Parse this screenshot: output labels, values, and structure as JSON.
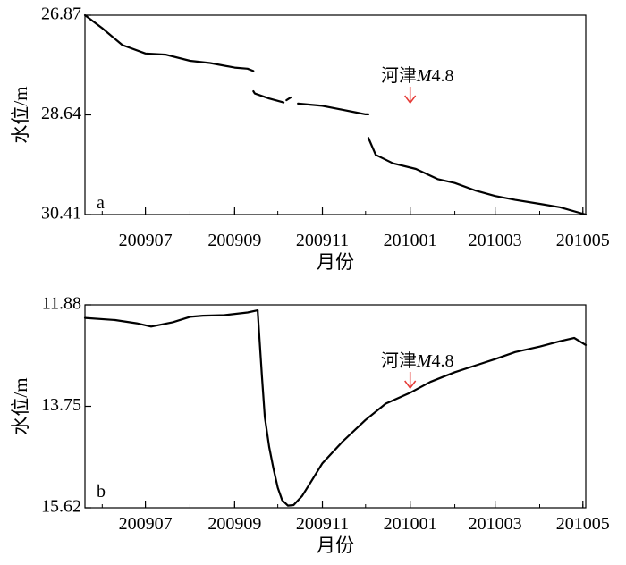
{
  "chart_data": [
    {
      "type": "line",
      "panel_label": "a",
      "xlabel": "月份",
      "ylabel": "水位/m",
      "y_inverted": true,
      "ylim": [
        26.87,
        30.41
      ],
      "xlim": [
        "2009-05-20",
        "2010-05-03"
      ],
      "y_ticks": [
        "26.87",
        "28.64",
        "30.41"
      ],
      "x_ticks": [
        "200907",
        "200909",
        "200911",
        "201001",
        "201003",
        "201005"
      ],
      "series_color": "#000000",
      "series": [
        {
          "segments": [
            {
              "x": [
                "2009-05-20",
                "2009-06-01",
                "2009-06-15",
                "2009-07-01",
                "2009-07-15",
                "2009-08-01",
                "2009-08-15",
                "2009-09-01",
                "2009-09-10",
                "2009-09-14"
              ],
              "y": [
                26.87,
                27.1,
                27.4,
                27.55,
                27.57,
                27.68,
                27.72,
                27.8,
                27.82,
                27.86
              ]
            },
            {
              "x": [
                "2009-09-14",
                "2009-09-15",
                "2009-09-25",
                "2009-10-05"
              ],
              "y": [
                28.22,
                28.26,
                28.35,
                28.42
              ]
            },
            {
              "x": [
                "2009-10-07",
                "2009-10-10"
              ],
              "y": [
                28.38,
                28.33
              ]
            },
            {
              "x": [
                "2009-10-15",
                "2009-11-01",
                "2009-11-15",
                "2009-11-25",
                "2009-12-01",
                "2009-12-03"
              ],
              "y": [
                28.44,
                28.48,
                28.55,
                28.6,
                28.63,
                28.63
              ]
            },
            {
              "x": [
                "2009-12-03",
                "2009-12-08",
                "2009-12-20",
                "2010-01-05",
                "2010-01-20",
                "2010-02-01",
                "2010-02-15",
                "2010-03-01",
                "2010-03-15",
                "2010-04-01",
                "2010-04-15",
                "2010-05-03"
              ],
              "y": [
                29.05,
                29.35,
                29.5,
                29.6,
                29.78,
                29.85,
                29.98,
                30.08,
                30.15,
                30.22,
                30.28,
                30.41
              ]
            }
          ]
        }
      ],
      "annotations": [
        {
          "text_prefix": "河津",
          "text_mag": "M",
          "text_value": "4.8",
          "arrow": "↓",
          "x": "2010-01-01",
          "arrow_color": "#e53935"
        }
      ]
    },
    {
      "type": "line",
      "panel_label": "b",
      "xlabel": "月份",
      "ylabel": "水位/m",
      "y_inverted": true,
      "ylim": [
        11.88,
        15.62
      ],
      "xlim": [
        "2009-05-20",
        "2010-05-03"
      ],
      "y_ticks": [
        "11.88",
        "13.75",
        "15.62"
      ],
      "x_ticks": [
        "200907",
        "200909",
        "200911",
        "201001",
        "201003",
        "201005"
      ],
      "series_color": "#000000",
      "series": [
        {
          "segments": [
            {
              "x": [
                "2009-05-20",
                "2009-06-10",
                "2009-06-25",
                "2009-07-05",
                "2009-07-20",
                "2009-08-01",
                "2009-08-10",
                "2009-08-25",
                "2009-09-10",
                "2009-09-17"
              ],
              "y": [
                12.12,
                12.16,
                12.22,
                12.28,
                12.2,
                12.1,
                12.08,
                12.07,
                12.02,
                11.98
              ]
            },
            {
              "x": [
                "2009-09-17",
                "2009-09-20",
                "2009-09-22",
                "2009-09-25",
                "2009-09-28",
                "2009-10-01",
                "2009-10-04",
                "2009-10-08",
                "2009-10-12",
                "2009-10-18",
                "2009-10-25",
                "2009-11-01",
                "2009-11-15",
                "2009-12-01",
                "2009-12-15",
                "2010-01-01",
                "2010-01-15",
                "2010-02-01",
                "2010-02-15",
                "2010-03-01",
                "2010-03-15",
                "2010-04-01",
                "2010-04-15",
                "2010-04-25",
                "2010-05-03"
              ],
              "y": [
                11.98,
                13.2,
                13.95,
                14.5,
                14.9,
                15.25,
                15.48,
                15.58,
                15.57,
                15.4,
                15.1,
                14.8,
                14.4,
                14.0,
                13.7,
                13.5,
                13.3,
                13.12,
                13.0,
                12.88,
                12.75,
                12.65,
                12.55,
                12.49,
                12.62
              ]
            }
          ]
        }
      ],
      "annotations": [
        {
          "text_prefix": "河津",
          "text_mag": "M",
          "text_value": "4.8",
          "arrow": "↓",
          "x": "2010-01-01",
          "arrow_color": "#e53935"
        }
      ]
    }
  ]
}
